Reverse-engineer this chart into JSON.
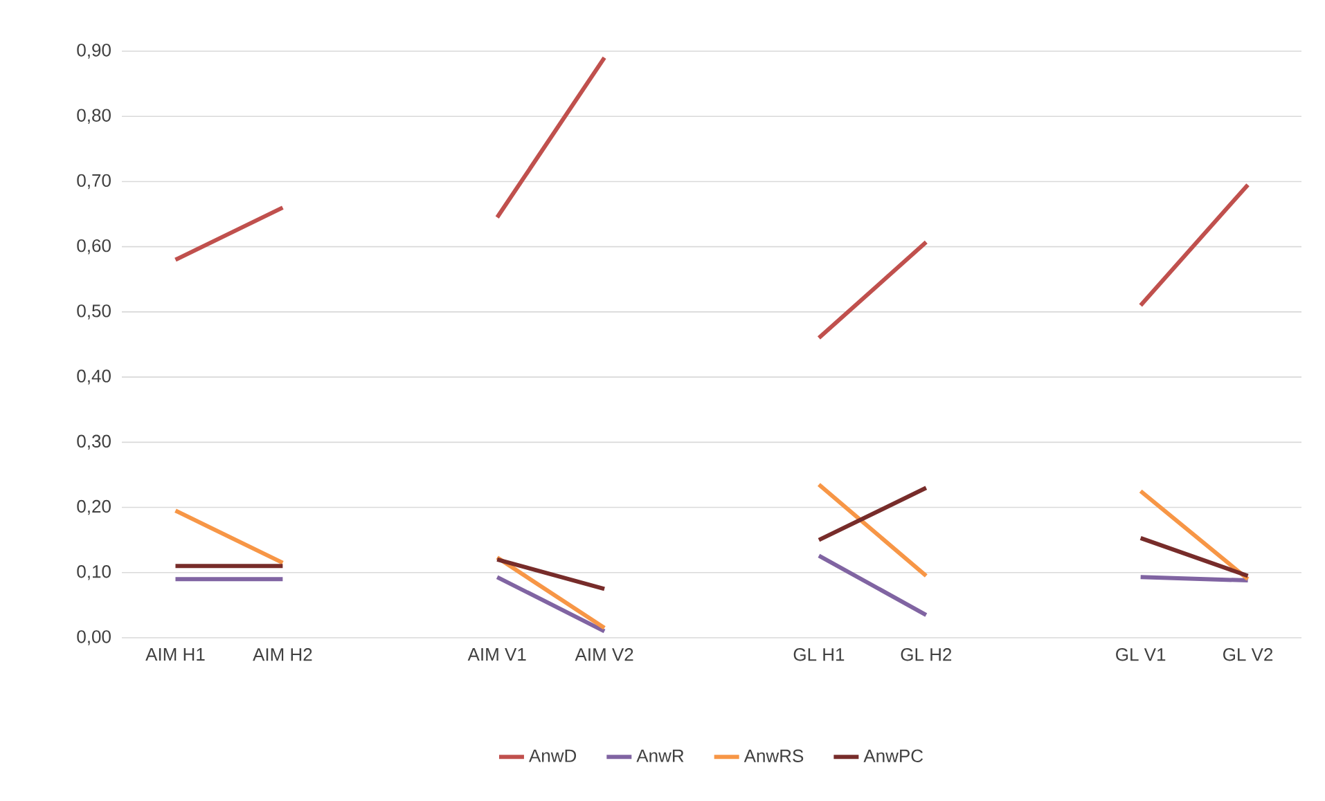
{
  "chart_data": {
    "type": "line",
    "categories": [
      "AIM H1",
      "AIM H2",
      null,
      "AIM V1",
      "AIM V2",
      null,
      "GL H1",
      "GL H2",
      null,
      "GL V1",
      "GL V2"
    ],
    "series": [
      {
        "name": "AnwD",
        "color": "#c0504d",
        "values": [
          0.58,
          0.66,
          null,
          0.645,
          0.89,
          null,
          0.46,
          0.607,
          null,
          0.51,
          0.695
        ]
      },
      {
        "name": "AnwR",
        "color": "#8064a2",
        "values": [
          0.09,
          0.09,
          null,
          0.093,
          0.01,
          null,
          0.126,
          0.035,
          null,
          0.093,
          0.088
        ]
      },
      {
        "name": "AnwRS",
        "color": "#f79646",
        "values": [
          0.195,
          0.115,
          null,
          0.123,
          0.015,
          null,
          0.235,
          0.095,
          null,
          0.225,
          0.09
        ]
      },
      {
        "name": "AnwPC",
        "color": "#772c2a",
        "values": [
          0.11,
          0.11,
          null,
          0.12,
          0.075,
          null,
          0.15,
          0.23,
          null,
          0.153,
          0.095
        ]
      }
    ],
    "ylim": [
      0,
      0.9
    ],
    "yticks": [
      {
        "value": 0,
        "label": "0,00"
      },
      {
        "value": 0.1,
        "label": "0,10"
      },
      {
        "value": 0.2,
        "label": "0,20"
      },
      {
        "value": 0.3,
        "label": "0,30"
      },
      {
        "value": 0.4,
        "label": "0,40"
      },
      {
        "value": 0.5,
        "label": "0,50"
      },
      {
        "value": 0.6,
        "label": "0,60"
      },
      {
        "value": 0.7,
        "label": "0,70"
      },
      {
        "value": 0.8,
        "label": "0,80"
      },
      {
        "value": 0.9,
        "label": "0,90"
      }
    ],
    "grid": "y",
    "legend": "bottom",
    "marker": "none",
    "line_style": "solid"
  }
}
